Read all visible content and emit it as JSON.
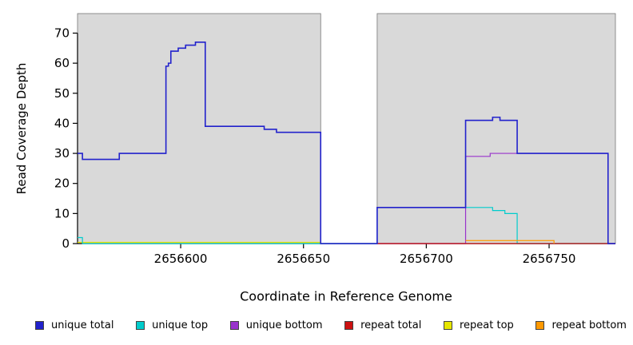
{
  "chart_data": {
    "type": "line",
    "subtype": "step-after",
    "title": "",
    "xlabel": "Coordinate in Reference Genome",
    "ylabel": "Read Coverage Depth",
    "xlim": [
      2656558,
      2656777
    ],
    "ylim": [
      0,
      76.5
    ],
    "x_ticks": [
      2656600,
      2656650,
      2656700,
      2656750
    ],
    "y_ticks": [
      0,
      10,
      20,
      30,
      40,
      50,
      60,
      70
    ],
    "grid": false,
    "plot_background": "#ffffff",
    "shaded_regions": [
      {
        "x0": 2656558,
        "x1": 2656657,
        "color": "#d9d9d9"
      },
      {
        "x0": 2656680,
        "x1": 2656777,
        "color": "#d9d9d9"
      }
    ],
    "gap_region": {
      "x0": 2656657,
      "x1": 2656680
    },
    "series": [
      {
        "name": "repeat top",
        "color": "#e6e600",
        "width": 1.2,
        "points": [
          [
            2656558,
            0.4
          ],
          [
            2656657,
            0.4
          ]
        ]
      },
      {
        "name": "unique top",
        "color": "#00cccc",
        "width": 1.2,
        "points": [
          [
            2656558,
            2
          ],
          [
            2656560,
            0
          ],
          [
            2656680,
            12
          ],
          [
            2656727,
            11
          ],
          [
            2656732,
            10
          ],
          [
            2656737,
            0
          ],
          [
            2656777,
            0
          ]
        ]
      },
      {
        "name": "unique bottom",
        "color": "#9933cc",
        "width": 1.2,
        "points": [
          [
            2656680,
            0
          ],
          [
            2656716,
            29
          ],
          [
            2656726,
            30
          ],
          [
            2656774,
            0
          ],
          [
            2656777,
            0
          ]
        ]
      },
      {
        "name": "repeat total",
        "color": "#cc1111",
        "width": 1.2,
        "points": [
          [
            2656680,
            0
          ],
          [
            2656777,
            0
          ]
        ]
      },
      {
        "name": "repeat bottom",
        "color": "#ff9900",
        "width": 1.2,
        "points": [
          [
            2656716,
            1
          ],
          [
            2656752,
            0
          ]
        ]
      },
      {
        "name": "unique total",
        "color": "#2222cc",
        "width": 1.6,
        "points": [
          [
            2656558,
            30
          ],
          [
            2656560,
            28
          ],
          [
            2656575,
            30
          ],
          [
            2656594,
            59
          ],
          [
            2656595,
            60
          ],
          [
            2656596,
            64
          ],
          [
            2656599,
            65
          ],
          [
            2656602,
            66
          ],
          [
            2656606,
            67
          ],
          [
            2656610,
            39
          ],
          [
            2656634,
            38
          ],
          [
            2656639,
            37
          ],
          [
            2656657,
            0
          ],
          [
            2656680,
            12
          ],
          [
            2656716,
            41
          ],
          [
            2656727,
            42
          ],
          [
            2656730,
            41
          ],
          [
            2656737,
            30
          ],
          [
            2656774,
            0
          ],
          [
            2656777,
            0
          ]
        ]
      }
    ],
    "legend": {
      "position": "bottom",
      "entries": [
        {
          "label": "unique total",
          "color": "#2222cc"
        },
        {
          "label": "unique top",
          "color": "#00cccc"
        },
        {
          "label": "unique bottom",
          "color": "#9933cc"
        },
        {
          "label": "repeat total",
          "color": "#cc1111"
        },
        {
          "label": "repeat top",
          "color": "#e6e600"
        },
        {
          "label": "repeat bottom",
          "color": "#ff9900"
        }
      ]
    }
  }
}
